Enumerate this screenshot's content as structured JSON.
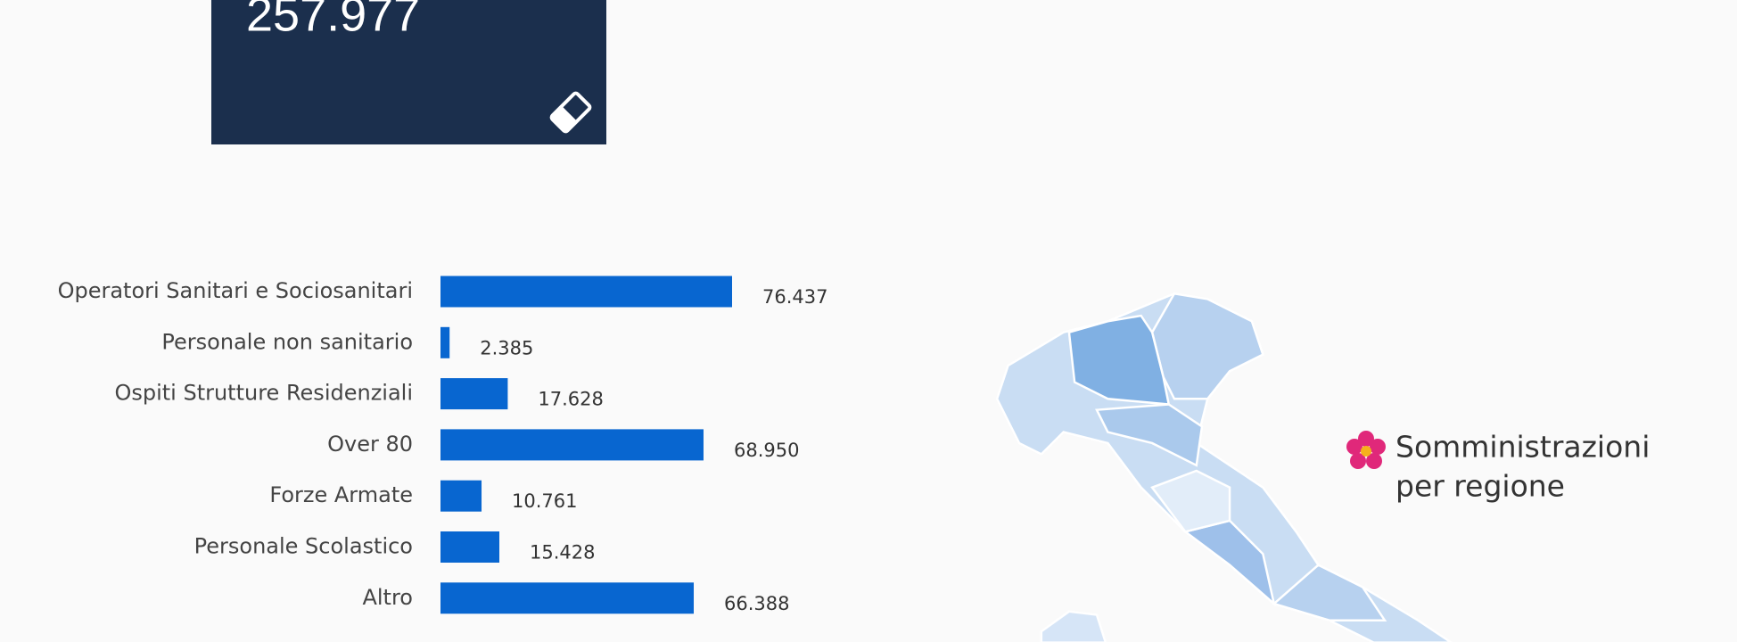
{
  "header": {
    "total": "257.977"
  },
  "chart_data": {
    "type": "bar",
    "orientation": "horizontal",
    "color": "#0866d0",
    "categories": [
      "Operatori Sanitari e Sociosanitari",
      "Personale non sanitario",
      "Ospiti Strutture Residenziali",
      "Over 80",
      "Forze Armate",
      "Personale Scolastico",
      "Altro"
    ],
    "values": [
      76437,
      2385,
      17628,
      68950,
      10761,
      15428,
      66388
    ],
    "value_labels": [
      "76.437",
      "2.385",
      "17.628",
      "68.950",
      "10.761",
      "15.428",
      "66.388"
    ]
  },
  "map": {
    "label_lines": [
      "Somministrazioni",
      "per regione"
    ]
  }
}
